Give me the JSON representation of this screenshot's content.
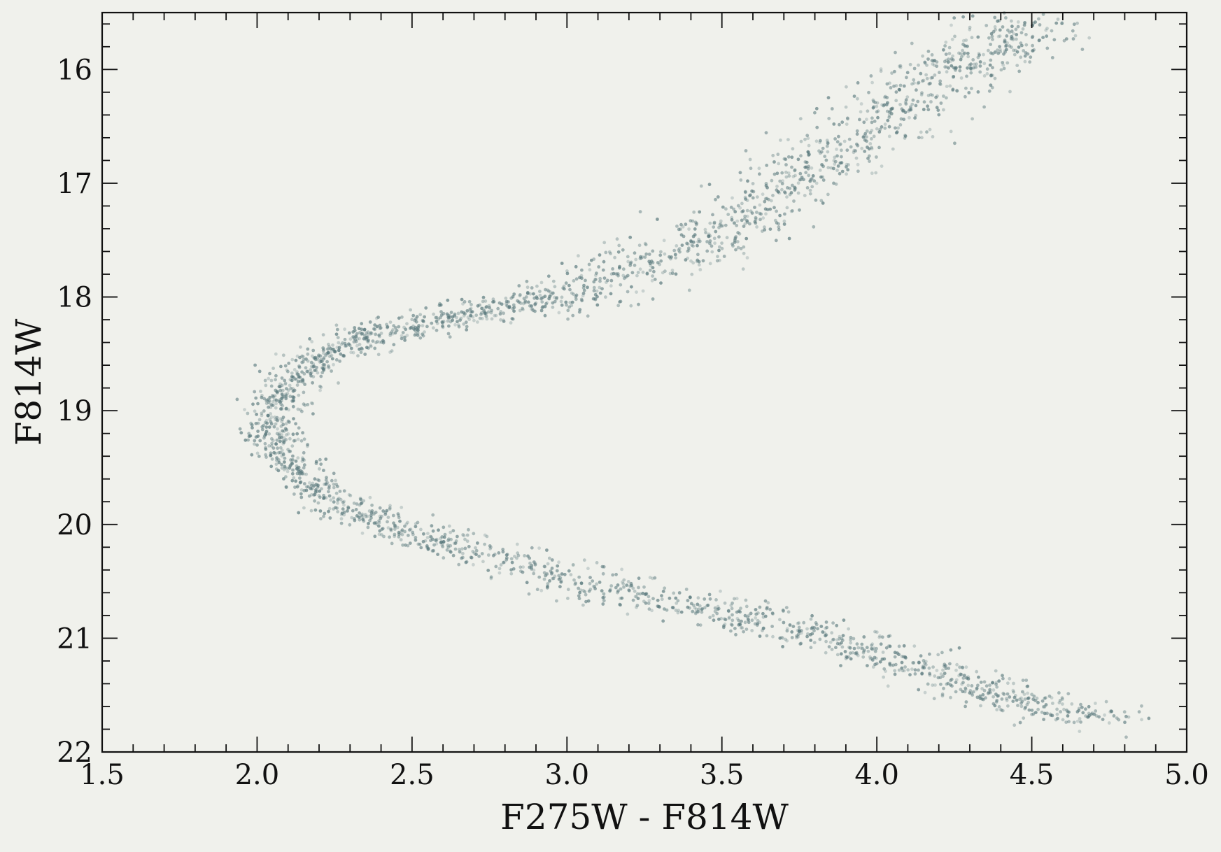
{
  "chart_data": {
    "type": "scatter",
    "title": "",
    "xlabel": "F275W - F814W",
    "ylabel": "F814W",
    "xlim": [
      1.5,
      5.0
    ],
    "ylim": [
      22.0,
      15.5
    ],
    "y_inverted": true,
    "x_ticks": [
      1.5,
      2.0,
      2.5,
      3.0,
      3.5,
      4.0,
      4.5,
      5.0
    ],
    "x_tick_labels": [
      "1.5",
      "2.0",
      "2.5",
      "3.0",
      "3.5",
      "4.0",
      "4.5",
      "5.0"
    ],
    "y_ticks": [
      16,
      17,
      18,
      19,
      20,
      21,
      22
    ],
    "y_tick_labels": [
      "16",
      "17",
      "18",
      "19",
      "20",
      "21",
      "22"
    ],
    "grid": false,
    "legend": "none",
    "colors": {
      "background": "#f0f1ec",
      "points": "#56767a",
      "axes": "#111111"
    },
    "series": [
      {
        "points": [
          [
            4.55,
            15.55
          ],
          [
            4.45,
            15.7
          ],
          [
            4.35,
            15.85
          ],
          [
            4.25,
            16.0
          ],
          [
            4.15,
            16.15
          ],
          [
            4.05,
            16.35
          ],
          [
            3.95,
            16.55
          ],
          [
            3.85,
            16.75
          ],
          [
            3.75,
            16.95
          ],
          [
            3.65,
            17.15
          ],
          [
            3.55,
            17.35
          ],
          [
            3.45,
            17.5
          ],
          [
            3.3,
            17.68
          ],
          [
            3.15,
            17.85
          ],
          [
            3.0,
            17.98
          ],
          [
            2.85,
            18.07
          ],
          [
            2.7,
            18.15
          ],
          [
            2.55,
            18.23
          ],
          [
            2.4,
            18.32
          ],
          [
            2.3,
            18.42
          ],
          [
            2.2,
            18.55
          ],
          [
            2.12,
            18.72
          ],
          [
            2.07,
            18.9
          ],
          [
            2.05,
            19.1
          ],
          [
            2.07,
            19.3
          ],
          [
            2.12,
            19.5
          ],
          [
            2.2,
            19.7
          ],
          [
            2.32,
            19.88
          ],
          [
            2.45,
            20.03
          ],
          [
            2.6,
            20.17
          ],
          [
            2.8,
            20.32
          ],
          [
            3.0,
            20.47
          ],
          [
            3.2,
            20.6
          ],
          [
            3.4,
            20.72
          ],
          [
            3.6,
            20.83
          ],
          [
            3.8,
            20.95
          ],
          [
            3.95,
            21.08
          ],
          [
            4.1,
            21.22
          ],
          [
            4.25,
            21.38
          ],
          [
            4.4,
            21.5
          ],
          [
            4.55,
            21.62
          ],
          [
            4.75,
            21.72
          ]
        ]
      }
    ]
  }
}
